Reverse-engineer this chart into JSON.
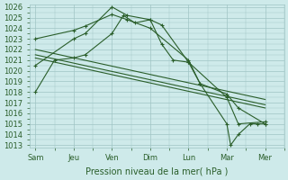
{
  "x_labels": [
    "Sam",
    "Jeu",
    "Ven",
    "Dim",
    "Lun",
    "Mar",
    "Mer"
  ],
  "x_positions": [
    0,
    1,
    2,
    3,
    4,
    5,
    6
  ],
  "background_color": "#ceeaea",
  "grid_color": "#a0c4c4",
  "line_color": "#2a5e2a",
  "series": [
    {
      "x": [
        0,
        1,
        1.3,
        2,
        2.4,
        3,
        3.3,
        4,
        5,
        5.3,
        6
      ],
      "y": [
        1020.5,
        1023.0,
        1023.5,
        1026.0,
        1025.2,
        1024.8,
        1024.3,
        1020.8,
        1017.5,
        1015.0,
        1015.2
      ],
      "marker": "+",
      "markersize": 3.5,
      "lw": 0.8
    },
    {
      "x": [
        0,
        1,
        1.3,
        2,
        2.4,
        3,
        4,
        4.3,
        5,
        5.3,
        6
      ],
      "y": [
        1023.0,
        1023.8,
        1024.2,
        1025.3,
        1024.8,
        1024.0,
        1021.0,
        1018.8,
        1017.8,
        1016.5,
        1015.0
      ],
      "marker": "+",
      "markersize": 3.5,
      "lw": 0.8
    },
    {
      "x": [
        0,
        6
      ],
      "y": [
        1022.0,
        1017.3
      ],
      "marker": "None",
      "markersize": 0,
      "lw": 0.8
    },
    {
      "x": [
        0,
        6
      ],
      "y": [
        1021.5,
        1016.8
      ],
      "marker": "None",
      "markersize": 0,
      "lw": 0.8
    },
    {
      "x": [
        0,
        6
      ],
      "y": [
        1021.2,
        1016.5
      ],
      "marker": "None",
      "markersize": 0,
      "lw": 0.8
    },
    {
      "x": [
        0,
        0.5,
        1,
        1.3,
        2,
        2.3,
        2.6,
        3,
        3.3,
        3.6,
        4,
        4.3,
        5,
        5.1,
        5.3,
        5.6,
        5.8,
        6
      ],
      "y": [
        1018.0,
        1021.0,
        1021.2,
        1021.5,
        1023.5,
        1025.2,
        1024.5,
        1024.8,
        1022.5,
        1021.0,
        1020.8,
        1018.8,
        1015.0,
        1013.0,
        1014.0,
        1015.0,
        1015.0,
        1015.0
      ],
      "marker": "+",
      "markersize": 3.5,
      "lw": 0.8
    }
  ],
  "ylim": [
    1013,
    1026
  ],
  "ytick_step": 1,
  "xlabel": "Pression niveau de la mer( hPa )",
  "xlabel_fontsize": 7,
  "tick_fontsize": 6,
  "xlim": [
    -0.15,
    6.5
  ]
}
